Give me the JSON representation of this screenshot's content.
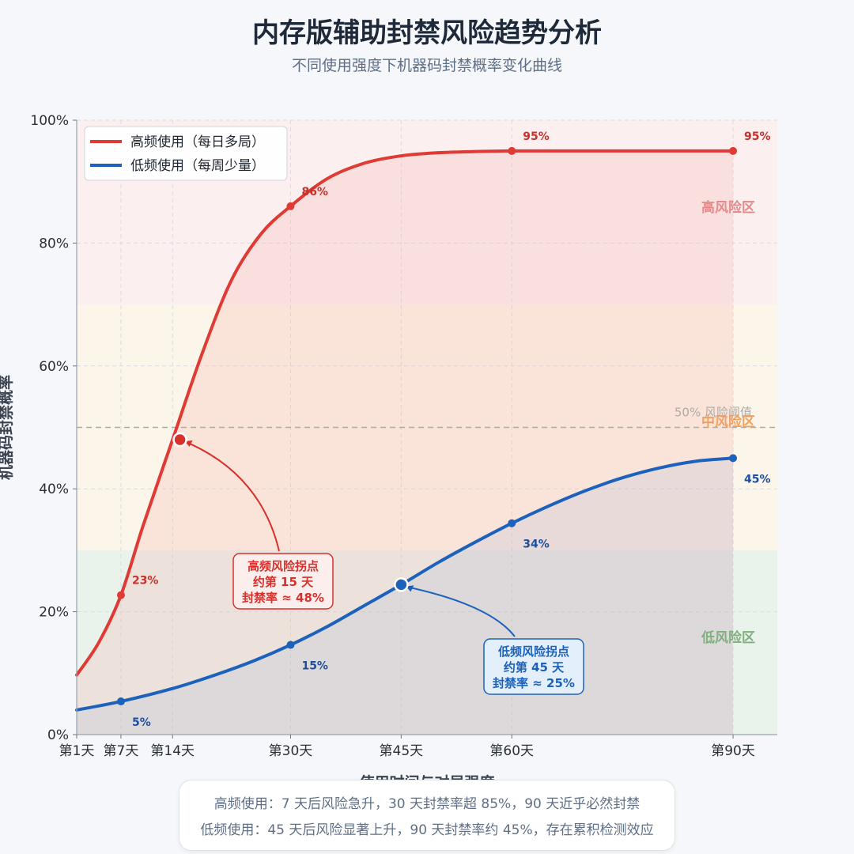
{
  "header": {
    "title": "内存版辅助封禁风险趋势分析",
    "subtitle": "不同使用强度下机器码封禁概率变化曲线"
  },
  "chart_data": {
    "type": "line",
    "xlabel": "使用时间与对局强度",
    "ylabel": "机器码封禁概率",
    "x_tick_values": [
      1,
      7,
      14,
      30,
      45,
      60,
      90
    ],
    "x_tick_labels": [
      "第1天",
      "第7天",
      "第14天",
      "第30天",
      "第45天",
      "第60天",
      "第90天"
    ],
    "xlim": [
      1,
      96
    ],
    "ylim": [
      0,
      100
    ],
    "y_ticks": [
      0,
      20,
      40,
      60,
      80,
      100
    ],
    "y_tick_labels": [
      "0%",
      "20%",
      "40%",
      "60%",
      "80%",
      "100%"
    ],
    "grid": true,
    "legend_position": "top-left",
    "zones": [
      {
        "label": "低风险区",
        "from": 0,
        "to": 30,
        "color": "#e6f2e6",
        "label_color": "#7fb07f"
      },
      {
        "label": "中风险区",
        "from": 30,
        "to": 70,
        "color": "#fdf4e3",
        "label_color": "#f0a060"
      },
      {
        "label": "高风险区",
        "from": 70,
        "to": 100,
        "color": "#fdecec",
        "label_color": "#e48a8a"
      }
    ],
    "threshold": {
      "value": 50,
      "label": "50% 风险阈值",
      "color": "#b0aaa4"
    },
    "series": [
      {
        "name": "高频使用（每日多局）",
        "color": "#e03a35",
        "label_color": "#c8302b",
        "fill": "#f5a9a6",
        "x": [
          1,
          4,
          7,
          10,
          14,
          18,
          22,
          26,
          30,
          35,
          40,
          45,
          50,
          55,
          60,
          70,
          80,
          90
        ],
        "y": [
          9.7,
          15,
          22.7,
          34,
          48,
          62,
          74,
          81.5,
          86,
          90.5,
          93,
          94.2,
          94.7,
          94.9,
          95,
          95,
          95,
          95
        ],
        "marker_x": [
          7,
          30,
          60,
          90
        ],
        "marker_y": [
          22.7,
          86,
          95,
          95
        ],
        "marker_labels": [
          "23%",
          "86%",
          "95%",
          "95%"
        ]
      },
      {
        "name": "低频使用（每周少量）",
        "color": "#1c62bd",
        "label_color": "#1c4fa0",
        "fill": "#aab8d0",
        "x": [
          1,
          7,
          14,
          20,
          25,
          30,
          35,
          40,
          45,
          50,
          55,
          60,
          65,
          70,
          75,
          80,
          85,
          90
        ],
        "y": [
          4,
          5.4,
          7.5,
          9.8,
          12,
          14.6,
          17.6,
          21,
          24.4,
          28,
          31.3,
          34.4,
          37.2,
          39.7,
          41.8,
          43.4,
          44.5,
          45
        ],
        "marker_x": [
          7,
          30,
          60,
          90
        ],
        "marker_y": [
          5.4,
          14.6,
          34.4,
          45
        ],
        "marker_labels": [
          "5%",
          "15%",
          "34%",
          "45%"
        ]
      }
    ],
    "annotations": [
      {
        "series_index": 0,
        "point_x": 15,
        "point_y": 48,
        "lines": [
          "高频风险拐点",
          "约第 15 天",
          "封禁率 ≈ 48%"
        ],
        "color": "#d8312c",
        "bg": "#fdeeee"
      },
      {
        "series_index": 1,
        "point_x": 45,
        "point_y": 24.4,
        "lines": [
          "低频风险拐点",
          "约第 45 天",
          "封禁率 ≈ 25%"
        ],
        "color": "#1c62bd",
        "bg": "#e3effb"
      }
    ]
  },
  "footer": {
    "line1": "高频使用：7 天后风险急升，30 天封禁率超 85%，90 天近乎必然封禁",
    "line2": "低频使用：45 天后风险显著上升，90 天封禁率约 45%，存在累积检测效应"
  }
}
